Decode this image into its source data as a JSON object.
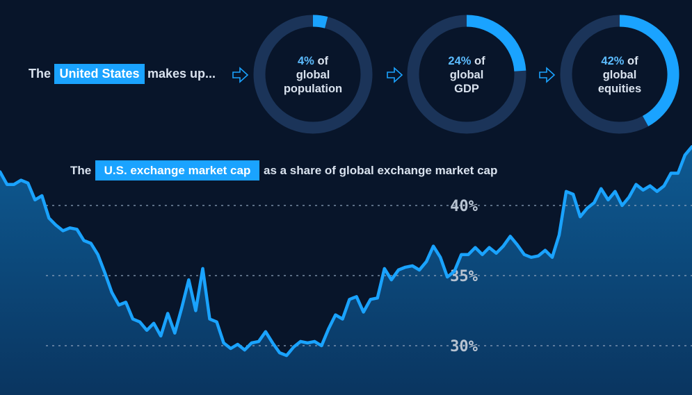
{
  "headline": {
    "prefix": "The",
    "highlight": "United States",
    "suffix": "makes up..."
  },
  "rings": [
    {
      "pct_text": "4%",
      "of_text": "of",
      "line2": "global",
      "line3": "population",
      "value": 4
    },
    {
      "pct_text": "24%",
      "of_text": "of",
      "line2": "global",
      "line3": "GDP",
      "value": 24
    },
    {
      "pct_text": "42%",
      "of_text": "of",
      "line2": "global",
      "line3": "equities",
      "value": 42
    }
  ],
  "chart_title": {
    "prefix": "The",
    "highlight": "U.S. exchange market cap",
    "suffix": "as a share of global exchange market cap"
  },
  "colors": {
    "background": "#08152a",
    "accent": "#1aa3ff",
    "ring_track": "#1b3459",
    "text": "#d9e2ee"
  },
  "chart_data": {
    "type": "area",
    "title": "The U.S. exchange market cap as a share of global exchange market cap",
    "xlabel": "",
    "ylabel": "",
    "y_ticks": [
      "40%",
      "35%",
      "30%"
    ],
    "ylim": [
      26.5,
      44
    ],
    "grid": "dashed horizontal",
    "series": [
      {
        "values": [
          42.4,
          41.5,
          41.5,
          41.8,
          41.6,
          40.4,
          40.7,
          39.1,
          38.6,
          38.2,
          38.4,
          38.3,
          37.5,
          37.3,
          36.5,
          35.2,
          33.8,
          32.9,
          33.1,
          31.9,
          31.7,
          31.1,
          31.6,
          30.7,
          32.3,
          30.9,
          32.7,
          34.7,
          32.5,
          35.5,
          31.9,
          31.7,
          30.2,
          29.8,
          30.1,
          29.7,
          30.2,
          30.3,
          31.0,
          30.2,
          29.5,
          29.3,
          29.9,
          30.3,
          30.2,
          30.3,
          30.0,
          31.2,
          32.2,
          31.9,
          33.3,
          33.5,
          32.4,
          33.3,
          33.4,
          35.5,
          34.7,
          35.4,
          35.6,
          35.7,
          35.4,
          36.0,
          37.1,
          36.3,
          34.9,
          35.3,
          36.5,
          36.5,
          37.0,
          36.5,
          37.0,
          36.6,
          37.1,
          37.8,
          37.2,
          36.5,
          36.3,
          36.4,
          36.8,
          36.3,
          37.9,
          41.0,
          40.8,
          39.2,
          39.8,
          40.2,
          41.2,
          40.4,
          41.0,
          40.0,
          40.6,
          41.5,
          41.1,
          41.4,
          41.0,
          41.4,
          42.3,
          42.3,
          43.6,
          44.2
        ]
      }
    ]
  }
}
